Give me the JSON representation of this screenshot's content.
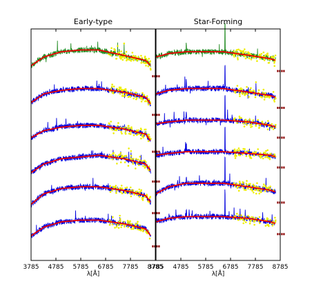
{
  "chart_data": [
    {
      "type": "line",
      "title": "Early-type",
      "xlabel": "λ[Å]",
      "ylabel": "",
      "x_ticks": [
        3785,
        4785,
        5785,
        6785,
        7785,
        8785
      ],
      "x_tick_labels": [
        "3785",
        "4785",
        "5785",
        "6785",
        "7785",
        "8785"
      ],
      "xlim": [
        3785,
        8785
      ],
      "colors": {
        "spectrum_top": "#228B22",
        "spectrum": "#0000dd",
        "model": "#ee0000",
        "points": "#eeee00",
        "masked": "#8b0000"
      },
      "series": [
        {
          "offset": 100,
          "values": [
            [
              3785,
              91
            ],
            [
              4300,
              96
            ],
            [
              5000,
              99
            ],
            [
              5785,
              100
            ],
            [
              6500,
              100
            ],
            [
              7500,
              97
            ],
            [
              8400,
              94
            ],
            [
              8600,
              91
            ]
          ]
        },
        {
          "offset": 78,
          "values": [
            [
              3785,
              70
            ],
            [
              4300,
              75
            ],
            [
              5000,
              77
            ],
            [
              5785,
              78
            ],
            [
              6500,
              78
            ],
            [
              7500,
              76
            ],
            [
              8400,
              73
            ],
            [
              8600,
              69
            ]
          ]
        },
        {
          "offset": 57,
          "values": [
            [
              3785,
              50
            ],
            [
              4300,
              54
            ],
            [
              5000,
              56
            ],
            [
              5785,
              57
            ],
            [
              6500,
              57
            ],
            [
              7500,
              55
            ],
            [
              8400,
              52
            ],
            [
              8600,
              48
            ]
          ]
        },
        {
          "offset": 39,
          "values": [
            [
              3785,
              30
            ],
            [
              4300,
              35
            ],
            [
              5000,
              38
            ],
            [
              5785,
              39
            ],
            [
              6500,
              40
            ],
            [
              7500,
              38
            ],
            [
              8400,
              35
            ],
            [
              8600,
              31
            ]
          ]
        },
        {
          "offset": 22,
          "values": [
            [
              3785,
              12
            ],
            [
              4300,
              18
            ],
            [
              5000,
              21
            ],
            [
              5785,
              22
            ],
            [
              6500,
              22
            ],
            [
              7500,
              20
            ],
            [
              8400,
              17
            ],
            [
              8600,
              13
            ]
          ]
        },
        {
          "offset": 3,
          "values": [
            [
              3785,
              -6
            ],
            [
              4300,
              -1
            ],
            [
              5000,
              2
            ],
            [
              5785,
              3
            ],
            [
              6500,
              3
            ],
            [
              7500,
              1
            ],
            [
              8400,
              -2
            ],
            [
              8600,
              -6
            ]
          ]
        }
      ]
    },
    {
      "type": "line",
      "title": "Star-Forming",
      "xlabel": "λ[Å]",
      "ylabel": "",
      "x_ticks": [
        3785,
        4785,
        5785,
        6785,
        7785,
        8785
      ],
      "x_tick_labels": [
        "3785",
        "4785",
        "5785",
        "6785",
        "7785",
        "8785"
      ],
      "xlim": [
        3785,
        8785
      ],
      "colors": {
        "spectrum_top": "#228B22",
        "spectrum": "#0000dd",
        "model": "#ee0000",
        "points": "#eeee00",
        "masked": "#8b0000"
      },
      "series": [
        {
          "offset": 100,
          "values": [
            [
              3785,
              96
            ],
            [
              4300,
              98
            ],
            [
              5000,
              99
            ],
            [
              5785,
              99
            ],
            [
              6500,
              99
            ],
            [
              7500,
              97
            ],
            [
              8400,
              95
            ],
            [
              8600,
              94
            ]
          ]
        },
        {
          "offset": 78,
          "values": [
            [
              3785,
              75
            ],
            [
              4300,
              77
            ],
            [
              5000,
              78
            ],
            [
              5785,
              78
            ],
            [
              6500,
              78
            ],
            [
              7500,
              76
            ],
            [
              8400,
              74
            ],
            [
              8600,
              73
            ]
          ]
        },
        {
          "offset": 59,
          "values": [
            [
              3785,
              58
            ],
            [
              4300,
              59
            ],
            [
              5000,
              60
            ],
            [
              5785,
              60
            ],
            [
              6500,
              60
            ],
            [
              7500,
              59
            ],
            [
              8400,
              57
            ],
            [
              8600,
              56
            ]
          ]
        },
        {
          "offset": 41,
          "values": [
            [
              3785,
              40
            ],
            [
              4300,
              41
            ],
            [
              5000,
              42
            ],
            [
              5785,
              42
            ],
            [
              6500,
              42
            ],
            [
              7500,
              41
            ],
            [
              8400,
              40
            ],
            [
              8600,
              39
            ]
          ]
        },
        {
          "offset": 23,
          "values": [
            [
              3785,
              18
            ],
            [
              4300,
              22
            ],
            [
              5000,
              24
            ],
            [
              5785,
              24
            ],
            [
              6500,
              24
            ],
            [
              7500,
              22
            ],
            [
              8400,
              20
            ],
            [
              8600,
              19
            ]
          ]
        },
        {
          "offset": 3,
          "values": [
            [
              3785,
              2
            ],
            [
              4300,
              4
            ],
            [
              5000,
              5
            ],
            [
              5785,
              5
            ],
            [
              6500,
              5
            ],
            [
              7500,
              4
            ],
            [
              8400,
              2
            ],
            [
              8600,
              1
            ]
          ]
        }
      ]
    }
  ]
}
